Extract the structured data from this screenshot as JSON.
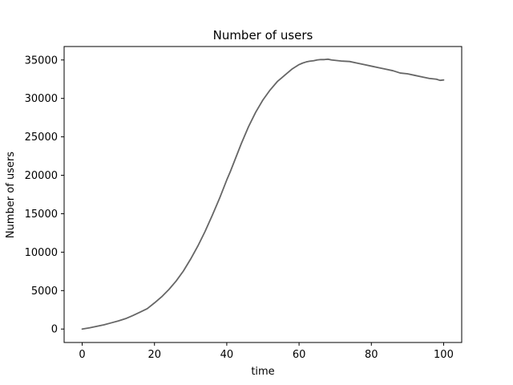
{
  "chart_data": {
    "type": "line",
    "title": "Number of users",
    "xlabel": "time",
    "ylabel": "Number of users",
    "xlim": [
      -5,
      105
    ],
    "ylim": [
      -1750,
      36750
    ],
    "x_ticks": [
      0,
      20,
      40,
      60,
      80,
      100
    ],
    "y_ticks": [
      0,
      5000,
      10000,
      15000,
      20000,
      25000,
      30000,
      35000
    ],
    "grid": false,
    "legend": "none",
    "line_color": "#666666",
    "series": [
      {
        "x": [
          0,
          2,
          4,
          6,
          8,
          10,
          12,
          14,
          16,
          18,
          20,
          22,
          24,
          26,
          28,
          30,
          32,
          34,
          36,
          38,
          40,
          41,
          42,
          44,
          46,
          48,
          50,
          52,
          54,
          55,
          56,
          58,
          60,
          61,
          62,
          63,
          64,
          65,
          66,
          67,
          68,
          69,
          70,
          71,
          72,
          74,
          76,
          78,
          80,
          82,
          84,
          86,
          88,
          90,
          92,
          94,
          96,
          98,
          99,
          100
        ],
        "y": [
          0,
          150,
          350,
          550,
          800,
          1050,
          1350,
          1750,
          2200,
          2650,
          3400,
          4200,
          5150,
          6250,
          7550,
          9100,
          10800,
          12700,
          14800,
          17000,
          19400,
          20500,
          21700,
          24100,
          26300,
          28200,
          29800,
          31100,
          32200,
          32600,
          33000,
          33800,
          34400,
          34600,
          34750,
          34850,
          34900,
          35000,
          35050,
          35050,
          35100,
          35000,
          34950,
          34900,
          34850,
          34800,
          34600,
          34400,
          34200,
          34000,
          33800,
          33600,
          33300,
          33200,
          33000,
          32800,
          32600,
          32500,
          32350,
          32400
        ]
      }
    ]
  }
}
